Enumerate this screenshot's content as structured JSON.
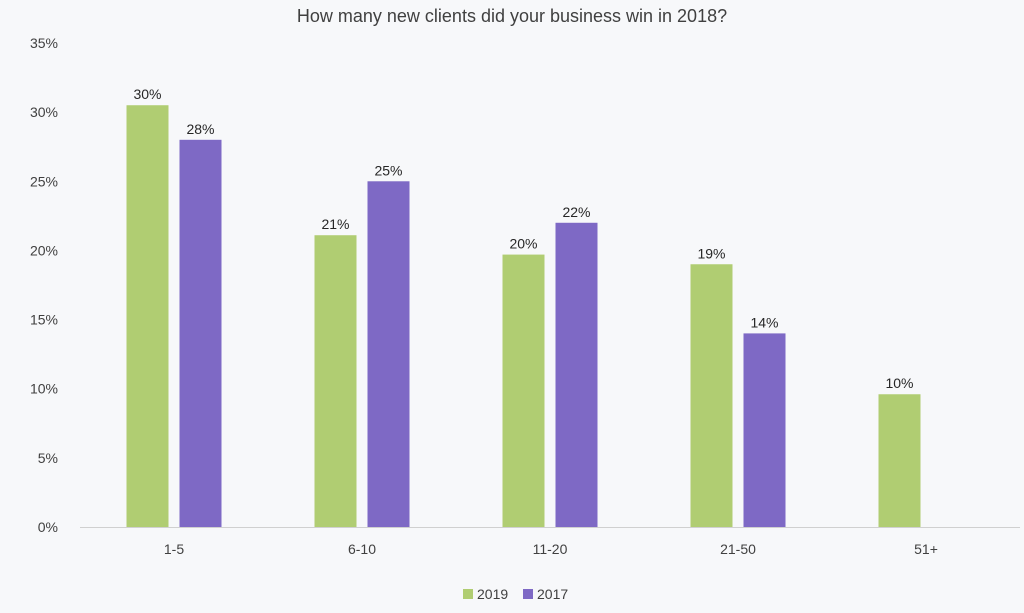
{
  "chart_data": {
    "type": "bar",
    "title": "How many new clients did your business win in 2018?",
    "xlabel": "",
    "ylabel": "",
    "categories": [
      "1-5",
      "6-10",
      "11-20",
      "21-50",
      "51+"
    ],
    "series": [
      {
        "name": "2019",
        "color": "#b0cd72",
        "values": [
          30.5,
          21.1,
          19.7,
          19,
          9.6
        ],
        "labels": [
          "30%",
          "21%",
          "20%",
          "19%",
          "10%"
        ]
      },
      {
        "name": "2017",
        "color": "#7e69c5",
        "values": [
          28,
          25,
          22,
          14,
          null
        ],
        "labels": [
          "28%",
          "25%",
          "22%",
          "14%",
          ""
        ]
      }
    ],
    "ylim": [
      0,
      35
    ],
    "yticks": [
      "0%",
      "5%",
      "10%",
      "15%",
      "20%",
      "25%",
      "30%",
      "35%"
    ],
    "grid": false,
    "legend_position": "bottom"
  }
}
